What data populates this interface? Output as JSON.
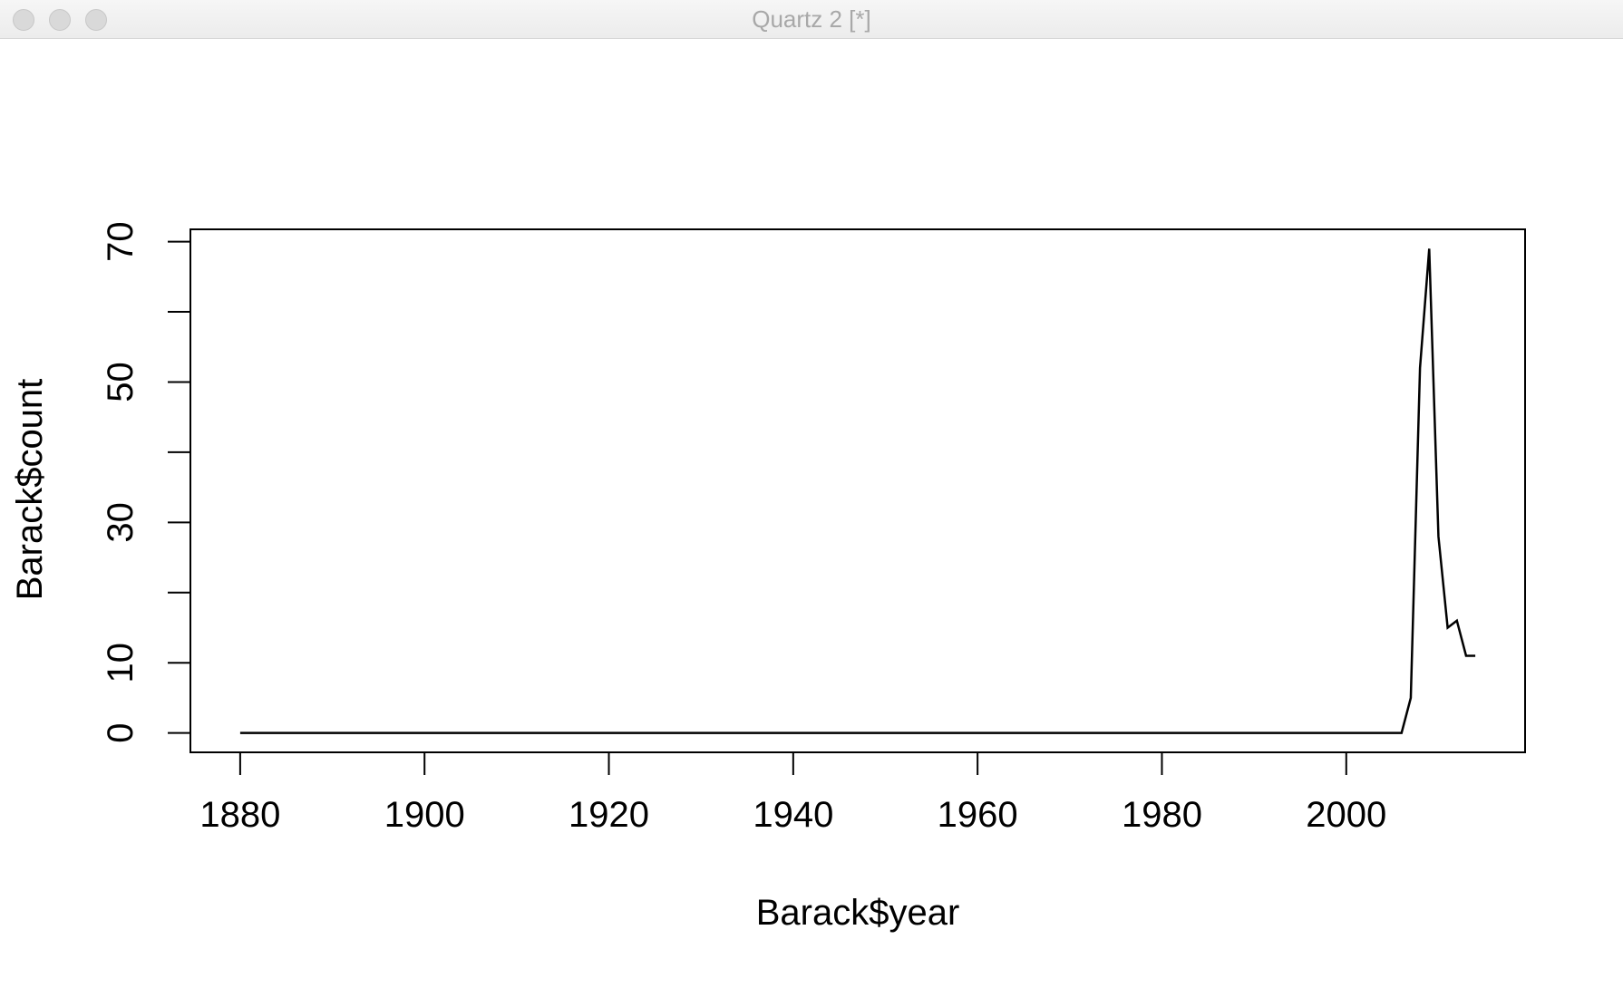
{
  "window": {
    "title": "Quartz 2 [*]"
  },
  "chart_data": {
    "type": "line",
    "title": "",
    "xlabel": "Barack$year",
    "ylabel": "Barack$count",
    "xlim": [
      1874.6,
      2019.4
    ],
    "ylim": [
      -2.76,
      71.76
    ],
    "x_ticks": [
      1880,
      1900,
      1920,
      1940,
      1960,
      1980,
      2000
    ],
    "y_ticks": [
      0,
      10,
      20,
      30,
      40,
      50,
      60,
      70
    ],
    "y_tick_labels": [
      "0",
      "10",
      "",
      "30",
      "",
      "50",
      "",
      "70"
    ],
    "grid": false,
    "line_color": "#000000",
    "series": [
      {
        "x": [
          1880,
          2006,
          2007,
          2008,
          2009,
          2010,
          2011,
          2012,
          2013,
          2014
        ],
        "values": [
          0,
          0,
          5,
          52,
          69,
          28,
          15,
          16,
          11,
          11
        ]
      }
    ]
  }
}
